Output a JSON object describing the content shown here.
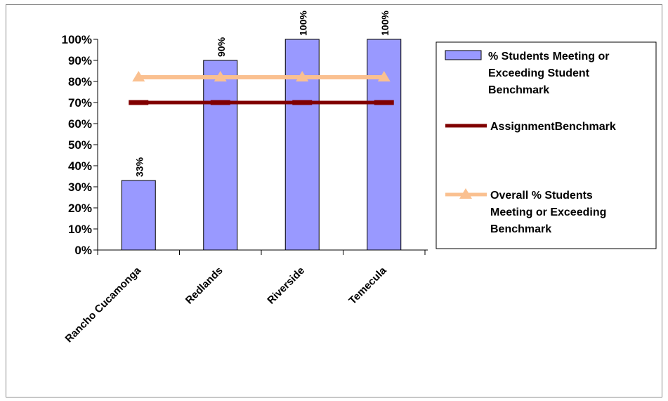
{
  "chart_data": {
    "type": "bar",
    "title": "",
    "xlabel": "",
    "ylabel": "",
    "categories": [
      "Rancho Cucamonga",
      "Redlands",
      "Riverside",
      "Temecula"
    ],
    "ylim": [
      0,
      100
    ],
    "yticks": [
      0,
      10,
      20,
      30,
      40,
      50,
      60,
      70,
      80,
      90,
      100
    ],
    "ytick_labels": [
      "0%",
      "10%",
      "20%",
      "30%",
      "40%",
      "50%",
      "60%",
      "70%",
      "80%",
      "90%",
      "100%"
    ],
    "grid": false,
    "legend_position": "right",
    "series": [
      {
        "name": "% Students Meeting or Exceeding Student Benchmark",
        "kind": "bar",
        "color": "#9999ff",
        "values": [
          33,
          90,
          100,
          100
        ],
        "data_labels": [
          "33%",
          "90%",
          "100%",
          "100%"
        ]
      },
      {
        "name": "AssignmentBenchmark",
        "kind": "line",
        "color": "#800000",
        "values": [
          70,
          70,
          70,
          70
        ]
      },
      {
        "name": "Overall % Students Meeting or Exceeding Benchmark",
        "kind": "line",
        "marker": "triangle",
        "color": "#fac090",
        "values": [
          82,
          82,
          82,
          82
        ]
      }
    ]
  }
}
